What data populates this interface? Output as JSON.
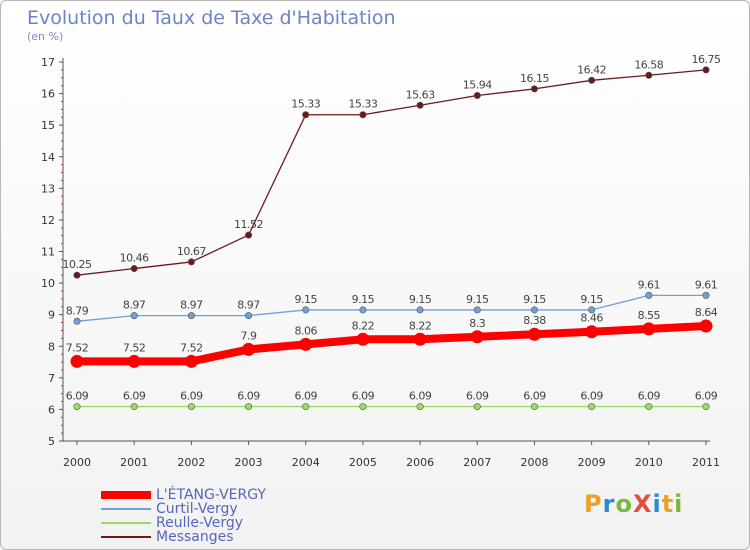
{
  "title": "Evolution du Taux de Taxe d'Habitation",
  "subtitle": "(en %)",
  "logo": {
    "text": "ProXiti",
    "colors": [
      "#f0a020",
      "#2c8ad0",
      "#79b83a",
      "#e0503c",
      "#2c8ad0",
      "#f0a020",
      "#79b83a"
    ]
  },
  "chart_data": {
    "type": "line",
    "x": [
      "2000",
      "2001",
      "2002",
      "2003",
      "2004",
      "2005",
      "2006",
      "2007",
      "2008",
      "2009",
      "2010",
      "2011"
    ],
    "ylim": [
      5,
      17
    ],
    "yticks": [
      "5",
      "6",
      "7",
      "8",
      "9",
      "10",
      "11",
      "12",
      "13",
      "14",
      "15",
      "16",
      "17"
    ],
    "grid": false,
    "legend_position": "bottom-left",
    "series": [
      {
        "name": "Messanges",
        "color": "#6b1a1a",
        "labels": [
          "10.25",
          "10.46",
          "10.67",
          "11.52",
          "15.33",
          "15.33",
          "15.63",
          "15.94",
          "16.15",
          "16.42",
          "16.58",
          "16.75"
        ]
      },
      {
        "name": "Curtil-Vergy",
        "color": "#6fa0d8",
        "labels": [
          "8.79",
          "8.97",
          "8.97",
          "8.97",
          "9.15",
          "9.15",
          "9.15",
          "9.15",
          "9.15",
          "9.15",
          "9.61",
          "9.61"
        ]
      },
      {
        "name": "L'ÉTANG-VERGY",
        "color": "#ff0000",
        "labels": [
          "7.52",
          "7.52",
          "7.52",
          "7.9",
          "8.06",
          "8.22",
          "8.22",
          "8.3",
          "8.38",
          "8.46",
          "8.55",
          "8.64"
        ]
      },
      {
        "name": "Reulle-Vergy",
        "color": "#99dd66",
        "labels": [
          "6.09",
          "6.09",
          "6.09",
          "6.09",
          "6.09",
          "6.09",
          "6.09",
          "6.09",
          "6.09",
          "6.09",
          "6.09",
          "6.09"
        ]
      }
    ]
  },
  "legend": {
    "items": [
      {
        "label": "L'ÉTANG-VERGY",
        "color": "#ff0000"
      },
      {
        "label": "Curtil-Vergy",
        "color": "#6fa0d8"
      },
      {
        "label": "Reulle-Vergy",
        "color": "#99dd66"
      },
      {
        "label": "Messanges",
        "color": "#6b1a1a"
      }
    ]
  }
}
